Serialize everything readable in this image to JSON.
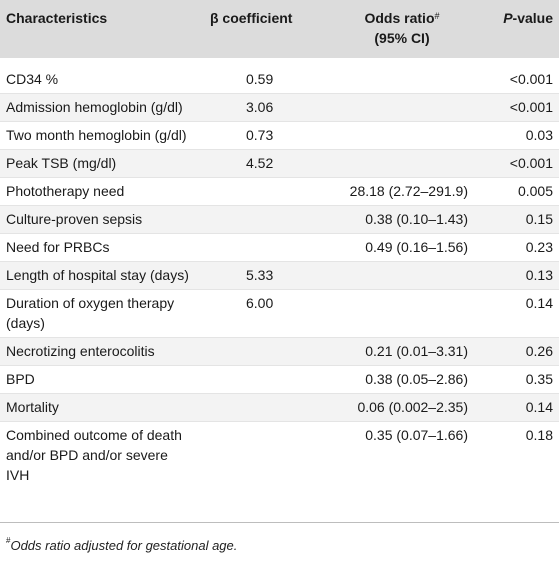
{
  "table": {
    "headers": {
      "characteristics": "Characteristics",
      "beta": "β coefficient",
      "odds_ratio_line1": "Odds ratio",
      "odds_ratio_mark": "#",
      "odds_ratio_line2": "(95% CI)",
      "p_value_italic": "P",
      "p_value_rest": "-value"
    },
    "rows": [
      {
        "characteristic": "CD34 %",
        "beta": "0.59",
        "odds_ratio": "",
        "p_value": "<0.001"
      },
      {
        "characteristic": "Admission hemoglobin (g/dl)",
        "beta": "3.06",
        "odds_ratio": "",
        "p_value": "<0.001"
      },
      {
        "characteristic": "Two month hemoglobin (g/dl)",
        "beta": "0.73",
        "odds_ratio": "",
        "p_value": "0.03"
      },
      {
        "characteristic": "Peak TSB (mg/dl)",
        "beta": "4.52",
        "odds_ratio": "",
        "p_value": "<0.001"
      },
      {
        "characteristic": "Phototherapy need",
        "beta": "",
        "odds_ratio": "28.18 (2.72–291.9)",
        "p_value": "0.005"
      },
      {
        "characteristic": "Culture-proven sepsis",
        "beta": "",
        "odds_ratio": "0.38 (0.10–1.43)",
        "p_value": "0.15"
      },
      {
        "characteristic": "Need for PRBCs",
        "beta": "",
        "odds_ratio": "0.49 (0.16–1.56)",
        "p_value": "0.23"
      },
      {
        "characteristic": "Length of hospital stay (days)",
        "beta": "5.33",
        "odds_ratio": "",
        "p_value": "0.13"
      },
      {
        "characteristic": "Duration of oxygen therapy (days)",
        "beta": "6.00",
        "odds_ratio": "",
        "p_value": "0.14"
      },
      {
        "characteristic": "Necrotizing enterocolitis",
        "beta": "",
        "odds_ratio": "0.21 (0.01–3.31)",
        "p_value": "0.26"
      },
      {
        "characteristic": "BPD",
        "beta": "",
        "odds_ratio": "0.38 (0.05–2.86)",
        "p_value": "0.35"
      },
      {
        "characteristic": "Mortality",
        "beta": "",
        "odds_ratio": "0.06 (0.002–2.35)",
        "p_value": "0.14"
      },
      {
        "characteristic": "Combined outcome of death and/or BPD and/or severe IVH",
        "beta": "",
        "odds_ratio": "0.35 (0.07–1.66)",
        "p_value": "0.18"
      }
    ]
  },
  "footnote": {
    "mark": "#",
    "text": "Odds ratio adjusted for gestational age."
  },
  "colors": {
    "header_background": "#dcdcdc",
    "alternate_row_background": "#f3f3f3",
    "text": "#1a1a1a"
  }
}
